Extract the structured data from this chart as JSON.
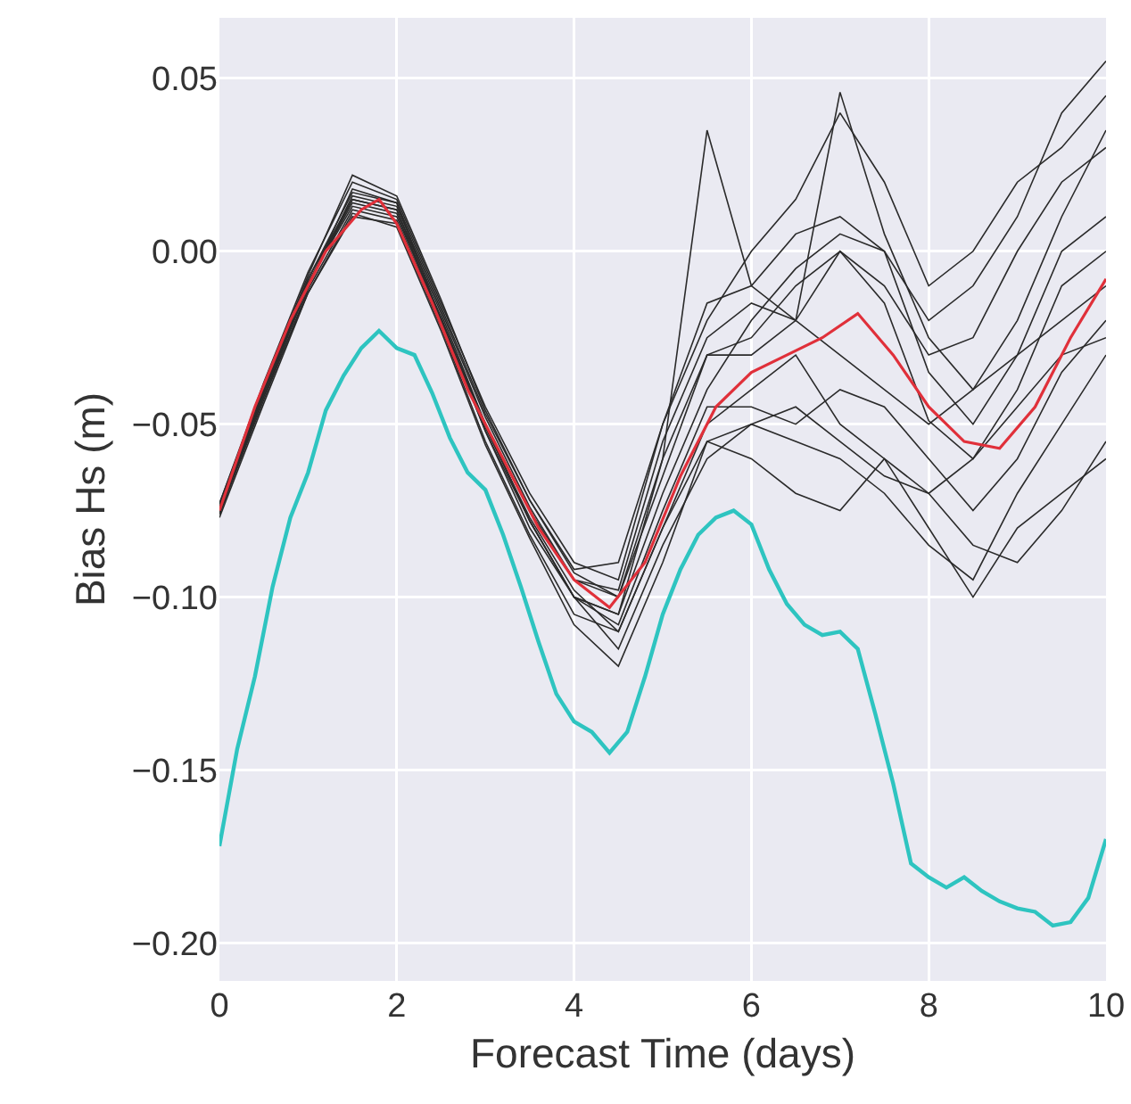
{
  "chart_data": {
    "type": "line",
    "xlabel": "Forecast Time (days)",
    "ylabel": "Bias Hs (m)",
    "x": [
      0,
      0.5,
      1,
      1.5,
      2,
      2.5,
      3,
      3.5,
      4,
      4.5,
      5,
      5.5,
      6,
      6.5,
      7,
      7.5,
      8,
      8.5,
      9,
      9.5,
      10
    ],
    "xlim": [
      0,
      10
    ],
    "xticks": [
      0,
      2,
      4,
      6,
      8,
      10
    ],
    "ylim": [
      -0.211,
      0.0675
    ],
    "yticks": [
      {
        "value": 0.05,
        "label": "0.05"
      },
      {
        "value": 0,
        "label": "0.00"
      },
      {
        "value": -0.05,
        "label": "−0.05"
      },
      {
        "value": -0.1,
        "label": "−0.10"
      },
      {
        "value": -0.15,
        "label": "−0.15"
      },
      {
        "value": -0.2,
        "label": "−0.20"
      }
    ],
    "grid": true,
    "marker": "none",
    "line_style": "solid",
    "series": [
      {
        "color": "#2a2a2a",
        "values": [
          -0.075,
          -0.04,
          -0.008,
          0.015,
          0.012,
          -0.018,
          -0.05,
          -0.075,
          -0.095,
          -0.1,
          -0.06,
          0.035,
          -0.01,
          -0.02,
          -0.03,
          -0.04,
          -0.05,
          -0.04,
          -0.03,
          -0.02,
          -0.01
        ]
      },
      {
        "color": "#2a2a2a",
        "values": [
          -0.073,
          -0.038,
          -0.006,
          0.02,
          0.015,
          -0.015,
          -0.045,
          -0.07,
          -0.09,
          -0.095,
          -0.05,
          -0.02,
          0,
          0.015,
          0.04,
          0.02,
          -0.01,
          0,
          0.02,
          0.03,
          0.045
        ]
      },
      {
        "color": "#2a2a2a",
        "values": [
          -0.076,
          -0.042,
          -0.01,
          0.018,
          0.014,
          -0.02,
          -0.052,
          -0.08,
          -0.1,
          -0.105,
          -0.07,
          -0.04,
          -0.02,
          -0.005,
          0.005,
          0,
          -0.02,
          -0.01,
          0.01,
          0.04,
          0.055
        ]
      },
      {
        "color": "#2a2a2a",
        "values": [
          -0.077,
          -0.044,
          -0.012,
          0.01,
          0.008,
          -0.022,
          -0.055,
          -0.082,
          -0.105,
          -0.11,
          -0.08,
          -0.05,
          -0.04,
          -0.03,
          -0.05,
          -0.06,
          -0.08,
          -0.1,
          -0.08,
          -0.07,
          -0.06
        ]
      },
      {
        "color": "#2a2a2a",
        "values": [
          -0.074,
          -0.04,
          -0.009,
          0.014,
          0.011,
          -0.02,
          -0.05,
          -0.078,
          -0.1,
          -0.115,
          -0.085,
          -0.06,
          -0.05,
          -0.055,
          -0.06,
          -0.07,
          -0.085,
          -0.095,
          -0.07,
          -0.05,
          -0.03
        ]
      },
      {
        "color": "#2a2a2a",
        "values": [
          -0.075,
          -0.041,
          -0.01,
          0.016,
          0.013,
          -0.017,
          -0.048,
          -0.074,
          -0.095,
          -0.098,
          -0.055,
          -0.025,
          -0.015,
          -0.02,
          0,
          -0.01,
          -0.03,
          -0.025,
          0,
          0.02,
          0.03
        ]
      },
      {
        "color": "#2a2a2a",
        "values": [
          -0.076,
          -0.043,
          -0.011,
          0.012,
          0.009,
          -0.02,
          -0.052,
          -0.078,
          -0.1,
          -0.108,
          -0.075,
          -0.045,
          -0.045,
          -0.05,
          -0.04,
          -0.045,
          -0.06,
          -0.075,
          -0.06,
          -0.035,
          -0.02
        ]
      },
      {
        "color": "#2a2a2a",
        "values": [
          -0.073,
          -0.039,
          -0.007,
          0.022,
          0.016,
          -0.014,
          -0.046,
          -0.072,
          -0.092,
          -0.09,
          -0.05,
          -0.015,
          -0.01,
          0.005,
          0.01,
          0,
          -0.035,
          -0.05,
          -0.03,
          0,
          0.01
        ]
      },
      {
        "color": "#2a2a2a",
        "values": [
          -0.075,
          -0.042,
          -0.012,
          0.011,
          0.007,
          -0.023,
          -0.056,
          -0.083,
          -0.108,
          -0.12,
          -0.09,
          -0.055,
          -0.06,
          -0.07,
          -0.075,
          -0.06,
          -0.07,
          -0.085,
          -0.09,
          -0.075,
          -0.055
        ]
      },
      {
        "color": "#2a2a2a",
        "values": [
          -0.074,
          -0.04,
          -0.008,
          0.017,
          0.014,
          -0.016,
          -0.047,
          -0.072,
          -0.093,
          -0.1,
          -0.065,
          -0.03,
          -0.025,
          -0.01,
          0,
          -0.015,
          -0.049,
          -0.06,
          -0.04,
          -0.01,
          0
        ]
      },
      {
        "color": "#2a2a2a",
        "values": [
          -0.076,
          -0.041,
          -0.009,
          0.013,
          0.01,
          -0.019,
          -0.051,
          -0.077,
          -0.098,
          -0.11,
          -0.08,
          -0.055,
          -0.05,
          -0.045,
          -0.055,
          -0.065,
          -0.07,
          -0.06,
          -0.045,
          -0.03,
          -0.025
        ]
      },
      {
        "color": "#2a2a2a",
        "values": [
          -0.075,
          -0.04,
          -0.01,
          0.015,
          0.012,
          -0.02,
          -0.05,
          -0.078,
          -0.1,
          -0.105,
          -0.06,
          -0.03,
          -0.03,
          -0.02,
          0.046,
          0.005,
          -0.025,
          -0.04,
          -0.02,
          0.01,
          0.035
        ]
      },
      {
        "color": "#e0303a",
        "x": [
          0,
          0.4,
          0.8,
          1.2,
          1.6,
          1.8,
          2,
          2.4,
          2.8,
          3.2,
          3.6,
          4,
          4.4,
          4.8,
          5.2,
          5.6,
          6,
          6.4,
          6.8,
          7.2,
          7.6,
          8,
          8.4,
          8.8,
          9.2,
          9.6,
          10
        ],
        "values": [
          -0.075,
          -0.045,
          -0.02,
          0,
          0.012,
          0.015,
          0.008,
          -0.015,
          -0.04,
          -0.06,
          -0.08,
          -0.095,
          -0.103,
          -0.09,
          -0.065,
          -0.045,
          -0.035,
          -0.03,
          -0.025,
          -0.018,
          -0.03,
          -0.045,
          -0.055,
          -0.057,
          -0.045,
          -0.025,
          -0.008
        ]
      },
      {
        "color": "#2ec4c0",
        "x": [
          0,
          0.2,
          0.4,
          0.6,
          0.8,
          1,
          1.2,
          1.4,
          1.6,
          1.8,
          2,
          2.2,
          2.4,
          2.6,
          2.8,
          3,
          3.2,
          3.4,
          3.6,
          3.8,
          4,
          4.2,
          4.4,
          4.6,
          4.8,
          5,
          5.2,
          5.4,
          5.6,
          5.8,
          6,
          6.2,
          6.4,
          6.6,
          6.8,
          7,
          7.2,
          7.4,
          7.6,
          7.8,
          8,
          8.2,
          8.4,
          8.6,
          8.8,
          9,
          9.2,
          9.4,
          9.6,
          9.8,
          10
        ],
        "values": [
          -0.172,
          -0.144,
          -0.123,
          -0.097,
          -0.077,
          -0.064,
          -0.046,
          -0.036,
          -0.028,
          -0.023,
          -0.028,
          -0.03,
          -0.041,
          -0.054,
          -0.064,
          -0.069,
          -0.082,
          -0.097,
          -0.113,
          -0.128,
          -0.136,
          -0.139,
          -0.145,
          -0.139,
          -0.123,
          -0.105,
          -0.092,
          -0.082,
          -0.077,
          -0.075,
          -0.079,
          -0.092,
          -0.102,
          -0.108,
          -0.111,
          -0.11,
          -0.115,
          -0.134,
          -0.154,
          -0.177,
          -0.181,
          -0.184,
          -0.181,
          -0.185,
          -0.188,
          -0.19,
          -0.191,
          -0.195,
          -0.194,
          -0.187,
          -0.17
        ]
      }
    ]
  }
}
